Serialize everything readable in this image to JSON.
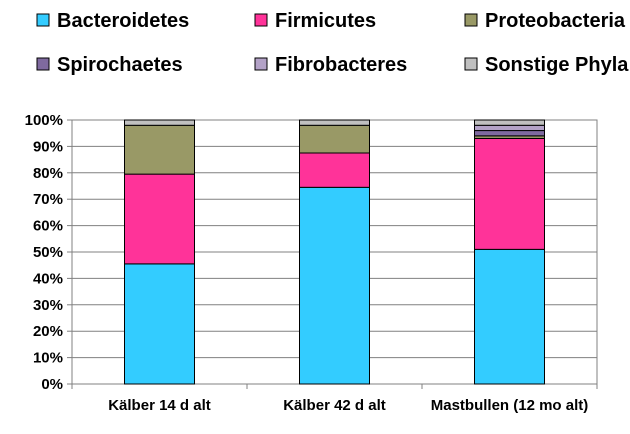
{
  "chart_data": {
    "type": "bar",
    "stacked": true,
    "normalized": true,
    "categories": [
      "Kälber 14 d alt",
      "Kälber 42 d alt",
      "Mastbullen (12 mo alt)"
    ],
    "series": [
      {
        "name": "Bacteroidetes",
        "color": "#33CCFF",
        "values": [
          45.5,
          74.5,
          51
        ]
      },
      {
        "name": "Firmicutes",
        "color": "#FF3399",
        "values": [
          34,
          13,
          42
        ]
      },
      {
        "name": "Proteobacteria",
        "color": "#999966",
        "values": [
          18.5,
          10.5,
          1
        ]
      },
      {
        "name": "Spirochaetes",
        "color": "#7F6A9F",
        "values": [
          0,
          0,
          2
        ]
      },
      {
        "name": "Fibrobacteres",
        "color": "#B3A2C7",
        "values": [
          0,
          0,
          2
        ]
      },
      {
        "name": "Sonstige Phyla",
        "color": "#C0C0C0",
        "values": [
          2,
          2,
          2
        ]
      }
    ],
    "ylim": [
      0,
      100
    ],
    "yticks": [
      "0%",
      "10%",
      "20%",
      "30%",
      "40%",
      "50%",
      "60%",
      "70%",
      "80%",
      "90%",
      "100%"
    ],
    "grid": true,
    "legend_position": "top"
  }
}
